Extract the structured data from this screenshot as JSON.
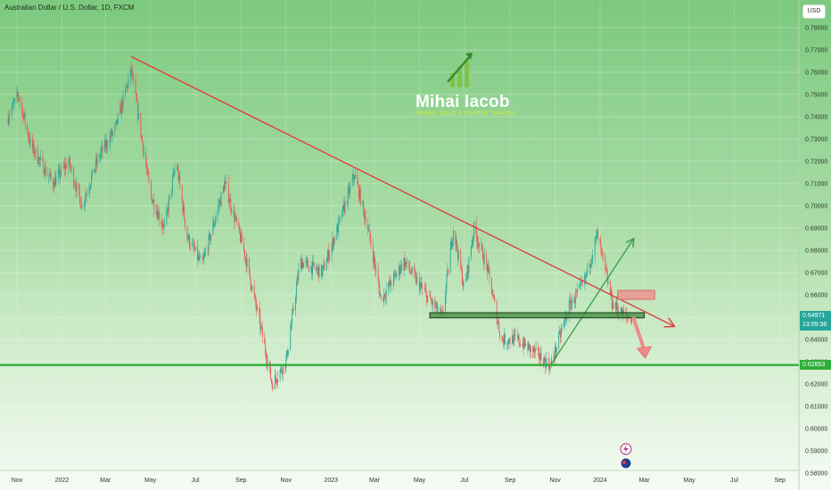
{
  "symbol": {
    "title": "Australian Dollar / U.S. Dollar, 1D, FXCM"
  },
  "currency": "USD",
  "logo": {
    "name": "Mihai Iacob",
    "tagline": "FOREX, GOLD & CRYPTO TRADER"
  },
  "current_price": {
    "value": "0.64971",
    "countdown": "13:09:36"
  },
  "support_price": "0.62853",
  "chart_data": {
    "type": "candlestick",
    "title": "Australian Dollar / U.S. Dollar, 1D, FXCM",
    "y_ticks": [
      "0.78000",
      "0.77000",
      "0.76000",
      "0.75000",
      "0.74000",
      "0.73000",
      "0.72000",
      "0.71000",
      "0.70000",
      "0.69000",
      "0.68000",
      "0.67000",
      "0.66000",
      "0.65000",
      "0.64000",
      "0.63000",
      "0.62000",
      "0.61000",
      "0.60000",
      "0.59000",
      "0.58000"
    ],
    "x_ticks": [
      "Nov",
      "2022",
      "Mar",
      "May",
      "Jul",
      "Sep",
      "Nov",
      "2023",
      "Mar",
      "May",
      "Jul",
      "Sep",
      "Nov",
      "2024",
      "Mar",
      "May",
      "Jul",
      "Sep"
    ],
    "ylim": [
      0.58,
      0.78
    ],
    "price_path": [
      {
        "x": "2021-10-20",
        "y": 0.74
      },
      {
        "x": "2021-11-03",
        "y": 0.75
      },
      {
        "x": "2021-11-20",
        "y": 0.727
      },
      {
        "x": "2021-12-20",
        "y": 0.71
      },
      {
        "x": "2022-01-10",
        "y": 0.72
      },
      {
        "x": "2022-01-28",
        "y": 0.7
      },
      {
        "x": "2022-02-20",
        "y": 0.722
      },
      {
        "x": "2022-03-15",
        "y": 0.735
      },
      {
        "x": "2022-04-05",
        "y": 0.761
      },
      {
        "x": "2022-05-01",
        "y": 0.705
      },
      {
        "x": "2022-05-20",
        "y": 0.69
      },
      {
        "x": "2022-06-05",
        "y": 0.72
      },
      {
        "x": "2022-06-20",
        "y": 0.686
      },
      {
        "x": "2022-07-10",
        "y": 0.673
      },
      {
        "x": "2022-08-10",
        "y": 0.71
      },
      {
        "x": "2022-09-05",
        "y": 0.68
      },
      {
        "x": "2022-10-01",
        "y": 0.64
      },
      {
        "x": "2022-10-13",
        "y": 0.62
      },
      {
        "x": "2022-11-01",
        "y": 0.63
      },
      {
        "x": "2022-11-20",
        "y": 0.675
      },
      {
        "x": "2022-12-20",
        "y": 0.67
      },
      {
        "x": "2023-01-10",
        "y": 0.69
      },
      {
        "x": "2023-02-02",
        "y": 0.714
      },
      {
        "x": "2023-02-20",
        "y": 0.69
      },
      {
        "x": "2023-03-10",
        "y": 0.658
      },
      {
        "x": "2023-04-10",
        "y": 0.675
      },
      {
        "x": "2023-05-10",
        "y": 0.66
      },
      {
        "x": "2023-06-01",
        "y": 0.65
      },
      {
        "x": "2023-06-16",
        "y": 0.69
      },
      {
        "x": "2023-07-01",
        "y": 0.662
      },
      {
        "x": "2023-07-14",
        "y": 0.69
      },
      {
        "x": "2023-08-01",
        "y": 0.672
      },
      {
        "x": "2023-08-20",
        "y": 0.64
      },
      {
        "x": "2023-09-10",
        "y": 0.64
      },
      {
        "x": "2023-10-01",
        "y": 0.635
      },
      {
        "x": "2023-10-26",
        "y": 0.628
      },
      {
        "x": "2023-11-20",
        "y": 0.655
      },
      {
        "x": "2023-12-10",
        "y": 0.665
      },
      {
        "x": "2023-12-28",
        "y": 0.687
      },
      {
        "x": "2024-01-18",
        "y": 0.656
      },
      {
        "x": "2024-02-05",
        "y": 0.65
      },
      {
        "x": "2024-02-13",
        "y": 0.6497
      }
    ],
    "annotations": [
      {
        "type": "trendline",
        "color": "#e23b3b",
        "from": {
          "x": "2022-04-05",
          "y": 0.767
        },
        "to": {
          "x": "2024-04-10",
          "y": 0.646
        }
      },
      {
        "type": "trendline",
        "color": "#2e9a3d",
        "from": {
          "x": "2023-10-26",
          "y": 0.6285
        },
        "to": {
          "x": "2024-02-15",
          "y": 0.685
        }
      },
      {
        "type": "horizontal_line",
        "color": "#2fae3b",
        "y": 0.62853
      },
      {
        "type": "zone",
        "color": "#3d8a3d",
        "x_from": "2023-05-15",
        "x_to": "2024-03-01",
        "y_from": 0.6497,
        "y_to": 0.652
      },
      {
        "type": "zone",
        "color": "#f08a8a",
        "x_from": "2024-01-25",
        "x_to": "2024-03-15",
        "y_from": 0.658,
        "y_to": 0.662
      },
      {
        "type": "arrow",
        "color": "#f08a8a",
        "from": {
          "x": "2024-02-15",
          "y": 0.65
        },
        "to": {
          "x": "2024-03-01",
          "y": 0.632
        }
      }
    ]
  }
}
